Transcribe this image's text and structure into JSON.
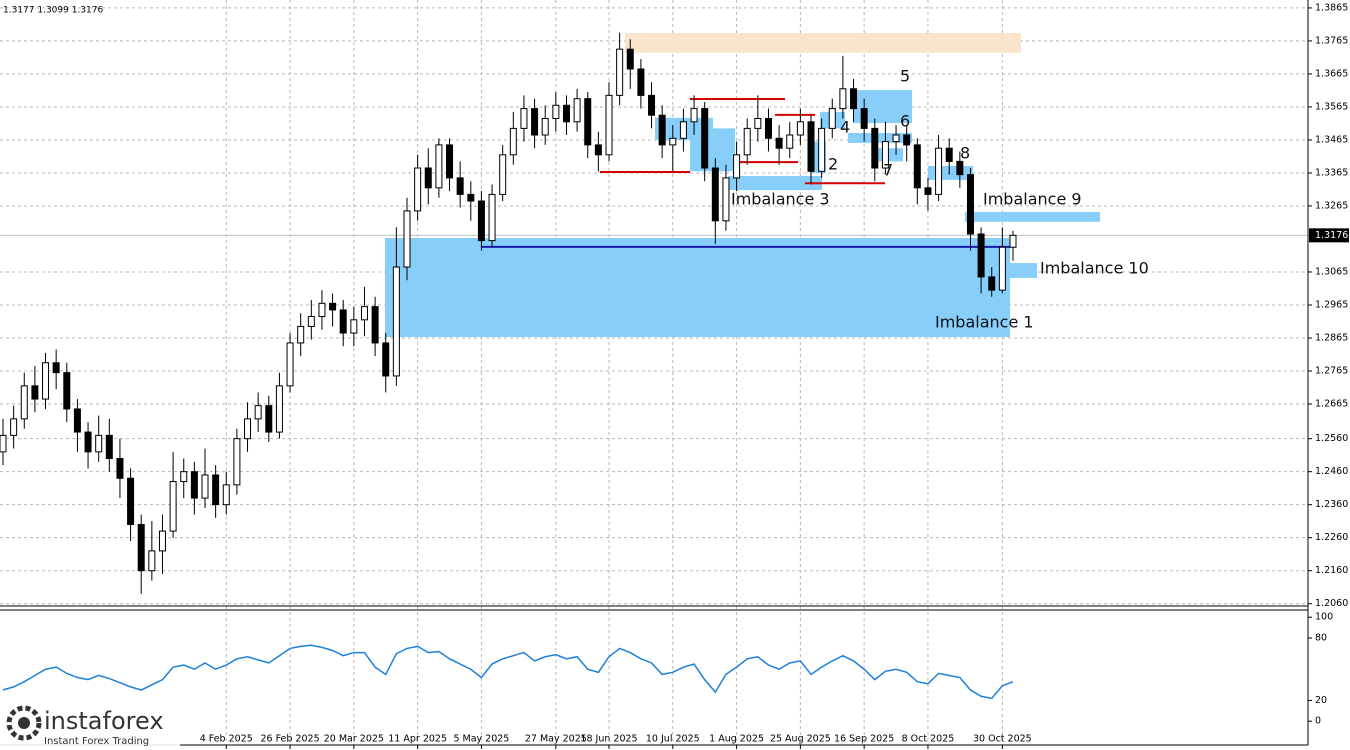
{
  "header": {
    "ohlc_text": "1.3177 1.3099 1.3176"
  },
  "logo": {
    "brand": "instaforex",
    "tagline": "Instant Forex Trading"
  },
  "chart_data": {
    "type": "candlestick",
    "categories": [
      null,
      null,
      null,
      null,
      null,
      null,
      null,
      null,
      null,
      null,
      null,
      null,
      null,
      null,
      null,
      null,
      null,
      null,
      null,
      null,
      null,
      "4 Feb 2025",
      null,
      null,
      null,
      null,
      null,
      "26 Feb 2025",
      null,
      null,
      null,
      null,
      null,
      "20 Mar 2025",
      null,
      null,
      null,
      null,
      null,
      "11 Apr 2025",
      null,
      null,
      null,
      null,
      null,
      "5 May 2025",
      null,
      null,
      null,
      null,
      null,
      null,
      "27 May 2025",
      null,
      null,
      null,
      null,
      "18 Jun 2025",
      null,
      null,
      null,
      null,
      null,
      "10 Jul 2025",
      null,
      null,
      null,
      null,
      null,
      "1 Aug 2025",
      null,
      null,
      null,
      null,
      null,
      "25 Aug 2025",
      null,
      null,
      null,
      null,
      null,
      "16 Sep 2025",
      null,
      null,
      null,
      null,
      null,
      "8 Oct 2025",
      null,
      null,
      null,
      null,
      null,
      null,
      "30 Oct 2025",
      null
    ],
    "open": [
      1.252,
      1.257,
      1.262,
      1.272,
      1.268,
      1.279,
      1.276,
      1.265,
      1.258,
      1.252,
      1.257,
      1.25,
      1.244,
      1.23,
      1.216,
      1.222,
      1.228,
      1.243,
      1.246,
      1.238,
      1.245,
      1.236,
      1.242,
      1.256,
      1.262,
      1.266,
      1.258,
      1.272,
      1.285,
      1.29,
      1.293,
      1.297,
      1.295,
      1.288,
      1.292,
      1.296,
      1.285,
      1.275,
      1.308,
      1.325,
      1.338,
      1.332,
      1.345,
      1.335,
      1.33,
      1.328,
      1.316,
      1.33,
      1.342,
      1.35,
      1.356,
      1.348,
      1.353,
      1.357,
      1.352,
      1.359,
      1.345,
      1.342,
      1.36,
      1.374,
      1.368,
      1.36,
      1.354,
      1.345,
      1.347,
      1.352,
      1.356,
      1.338,
      1.322,
      1.335,
      1.342,
      1.35,
      1.353,
      1.347,
      1.344,
      1.348,
      1.352,
      1.337,
      1.35,
      1.356,
      1.362,
      1.356,
      1.35,
      1.338,
      1.346,
      1.348,
      1.345,
      1.332,
      1.33,
      1.344,
      1.34,
      1.336,
      1.318,
      1.305,
      1.301,
      1.314
    ],
    "high": [
      1.262,
      1.266,
      1.276,
      1.278,
      1.282,
      1.283,
      1.279,
      1.268,
      1.261,
      1.263,
      1.262,
      1.256,
      1.247,
      1.233,
      1.231,
      1.233,
      1.252,
      1.25,
      1.249,
      1.253,
      1.248,
      1.246,
      1.259,
      1.267,
      1.27,
      1.269,
      1.276,
      1.288,
      1.294,
      1.298,
      1.301,
      1.3,
      1.298,
      1.296,
      1.302,
      1.299,
      1.288,
      1.32,
      1.329,
      1.342,
      1.344,
      1.347,
      1.347,
      1.34,
      1.334,
      1.331,
      1.333,
      1.345,
      1.355,
      1.36,
      1.359,
      1.357,
      1.361,
      1.36,
      1.362,
      1.361,
      1.349,
      1.364,
      1.379,
      1.377,
      1.371,
      1.364,
      1.357,
      1.351,
      1.356,
      1.36,
      1.358,
      1.341,
      1.339,
      1.346,
      1.353,
      1.36,
      1.356,
      1.351,
      1.352,
      1.356,
      1.354,
      1.353,
      1.359,
      1.372,
      1.365,
      1.359,
      1.353,
      1.352,
      1.351,
      1.351,
      1.347,
      1.335,
      1.348,
      1.347,
      1.343,
      1.338,
      1.32,
      1.308,
      1.32,
      1.319
    ],
    "low": [
      1.248,
      1.253,
      1.259,
      1.264,
      1.265,
      1.271,
      1.261,
      1.252,
      1.247,
      1.249,
      1.246,
      1.238,
      1.225,
      1.209,
      1.213,
      1.215,
      1.226,
      1.238,
      1.233,
      1.235,
      1.232,
      1.233,
      1.239,
      1.252,
      1.258,
      1.255,
      1.256,
      1.27,
      1.281,
      1.286,
      1.289,
      1.29,
      1.284,
      1.284,
      1.287,
      1.281,
      1.27,
      1.272,
      1.304,
      1.322,
      1.327,
      1.329,
      1.331,
      1.326,
      1.322,
      1.313,
      1.314,
      1.328,
      1.339,
      1.346,
      1.344,
      1.345,
      1.349,
      1.348,
      1.349,
      1.341,
      1.337,
      1.34,
      1.357,
      1.362,
      1.356,
      1.35,
      1.341,
      1.337,
      1.343,
      1.348,
      1.334,
      1.315,
      1.319,
      1.331,
      1.339,
      1.346,
      1.343,
      1.339,
      1.341,
      1.345,
      1.333,
      1.335,
      1.347,
      1.353,
      1.352,
      1.346,
      1.334,
      1.336,
      1.342,
      1.34,
      1.327,
      1.325,
      1.328,
      1.336,
      1.332,
      1.313,
      1.3,
      1.299,
      1.3,
      1.3099
    ],
    "close": [
      1.257,
      1.262,
      1.272,
      1.268,
      1.279,
      1.276,
      1.265,
      1.258,
      1.252,
      1.257,
      1.25,
      1.244,
      1.23,
      1.216,
      1.222,
      1.228,
      1.243,
      1.246,
      1.238,
      1.245,
      1.236,
      1.242,
      1.256,
      1.262,
      1.266,
      1.258,
      1.272,
      1.285,
      1.29,
      1.293,
      1.297,
      1.295,
      1.288,
      1.292,
      1.296,
      1.285,
      1.275,
      1.308,
      1.325,
      1.338,
      1.332,
      1.345,
      1.335,
      1.33,
      1.328,
      1.316,
      1.33,
      1.342,
      1.35,
      1.356,
      1.348,
      1.353,
      1.357,
      1.352,
      1.359,
      1.345,
      1.342,
      1.36,
      1.374,
      1.368,
      1.36,
      1.354,
      1.345,
      1.347,
      1.352,
      1.356,
      1.338,
      1.322,
      1.335,
      1.342,
      1.35,
      1.353,
      1.347,
      1.344,
      1.348,
      1.352,
      1.337,
      1.35,
      1.356,
      1.362,
      1.356,
      1.35,
      1.338,
      1.346,
      1.348,
      1.345,
      1.332,
      1.33,
      1.344,
      1.34,
      1.336,
      1.318,
      1.305,
      1.301,
      1.314,
      1.3176
    ],
    "ylim": [
      1.205,
      1.3889
    ],
    "yticks": [
      1.3865,
      1.3765,
      1.3665,
      1.3565,
      1.3465,
      1.3365,
      1.3265,
      1.3065,
      1.2965,
      1.2865,
      1.2765,
      1.2665,
      {
        "value": 1.256,
        "label": "1.2560"
      },
      {
        "value": 1.246,
        "label": "1.2460"
      },
      {
        "value": 1.236,
        "label": "1.2360"
      },
      {
        "value": 1.226,
        "label": "1.2260"
      },
      {
        "value": 1.216,
        "label": "1.2160"
      },
      {
        "value": 1.206,
        "label": "1.2060"
      }
    ],
    "grid": true,
    "zones": [
      {
        "range": [
          1.3789,
          1.3729
        ],
        "color": "#fae5cc"
      },
      {
        "label": "Imbalance 1",
        "range": [
          1.3168,
          1.2868
        ],
        "color": "#87cefa"
      },
      {
        "label": "Imbalance 10",
        "range": [
          1.3092,
          1.3047
        ],
        "color": "#87cefa"
      },
      {
        "label": "Imbalance 9",
        "range": [
          1.3247,
          1.3217
        ],
        "color": "#87cefa"
      },
      {
        "label": "Imbalance 3",
        "range": [
          1.3356,
          1.3313
        ],
        "color": "#87cefa"
      },
      {
        "label": "2",
        "range": [
          1.346,
          1.3365
        ],
        "color": "#87cefa"
      },
      {
        "label": "4",
        "range": [
          1.355,
          1.35
        ],
        "color": "#87cefa"
      },
      {
        "label": "5",
        "range": [
          1.3616,
          1.3516
        ],
        "color": "#87cefa"
      },
      {
        "label": "6",
        "range": [
          1.3486,
          1.3456
        ],
        "color": "#87cefa"
      },
      {
        "label": "7",
        "range": [
          1.344,
          1.34
        ],
        "color": "#87cefa"
      },
      {
        "label": "8",
        "range": [
          1.3386,
          1.3344
        ],
        "color": "#87cefa"
      },
      {
        "range": [
          1.3532,
          1.3465
        ],
        "color": "#87cefa"
      },
      {
        "range": [
          1.35,
          1.337
        ],
        "color": "#87cefa"
      }
    ],
    "levels": [
      {
        "price": 1.3141,
        "color": "#1a1ab0"
      },
      {
        "price": 1.3368,
        "color": "#d40000"
      },
      {
        "price": 1.3589,
        "color": "#d40000"
      },
      {
        "price": 1.3398,
        "color": "#d40000"
      },
      {
        "price": 1.3541,
        "color": "#d40000"
      },
      {
        "price": 1.3334,
        "color": "#d40000"
      }
    ],
    "indicator": {
      "type": "line",
      "color": "#1e7fd8",
      "values": [
        30,
        33,
        38,
        44,
        50,
        52,
        46,
        42,
        40,
        44,
        41,
        37,
        33,
        30,
        35,
        40,
        52,
        54,
        50,
        56,
        50,
        54,
        60,
        62,
        59,
        56,
        63,
        70,
        72,
        73,
        71,
        68,
        63,
        66,
        66,
        52,
        45,
        65,
        70,
        72,
        66,
        67,
        60,
        55,
        50,
        42,
        55,
        60,
        63,
        66,
        58,
        62,
        64,
        60,
        62,
        50,
        47,
        62,
        70,
        66,
        60,
        56,
        45,
        47,
        52,
        55,
        40,
        28,
        45,
        52,
        60,
        62,
        54,
        50,
        56,
        58,
        45,
        52,
        58,
        63,
        58,
        50,
        40,
        48,
        50,
        47,
        38,
        36,
        46,
        44,
        42,
        30,
        24,
        22,
        34,
        38
      ],
      "ylim": [
        -20,
        106
      ],
      "yticks": [
        100,
        80,
        20,
        0
      ]
    }
  }
}
